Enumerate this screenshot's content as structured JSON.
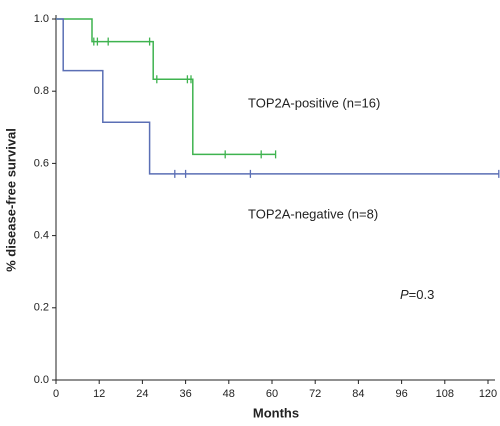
{
  "chart_data": {
    "type": "step",
    "x_label": "Months",
    "y_label": "% disease-free survival",
    "xlim": [
      0,
      122
    ],
    "ylim": [
      0,
      1.0
    ],
    "xticks": [
      0,
      12,
      24,
      36,
      48,
      60,
      72,
      84,
      96,
      108,
      120
    ],
    "yticks": [
      {
        "value": 0,
        "label": "0.0"
      },
      {
        "value": 0.2,
        "label": "0.2"
      },
      {
        "value": 0.4,
        "label": "0.4"
      },
      {
        "value": 0.6,
        "label": "0.6"
      },
      {
        "value": 0.8,
        "label": "0.8"
      },
      {
        "value": 1.0,
        "label": "1.0"
      }
    ],
    "series": [
      {
        "name": "TOP2A-positive (n=16)",
        "color": "#3fb34f",
        "x": [
          0,
          10,
          10,
          27,
          27,
          38,
          38,
          61
        ],
        "values": [
          1.0,
          1.0,
          0.9375,
          0.9375,
          0.833,
          0.833,
          0.625,
          0.625
        ],
        "censor_x": [
          10.5,
          11.5,
          14.5,
          26,
          28,
          36.5,
          37.5,
          47,
          57,
          61
        ],
        "censor_values": [
          0.9375,
          0.9375,
          0.9375,
          0.9375,
          0.833,
          0.833,
          0.833,
          0.625,
          0.625,
          0.625
        ]
      },
      {
        "name": "TOP2A-negative (n=8)",
        "color": "#5b6fb5",
        "x": [
          0,
          2,
          2,
          13,
          13,
          26,
          26,
          123
        ],
        "values": [
          1.0,
          1.0,
          0.857,
          0.857,
          0.714,
          0.714,
          0.571,
          0.571
        ],
        "censor_x": [
          33,
          36,
          54,
          123
        ],
        "censor_values": [
          0.571,
          0.571,
          0.571,
          0.571
        ]
      }
    ],
    "p_label": "P",
    "p_value": "=0.3"
  }
}
